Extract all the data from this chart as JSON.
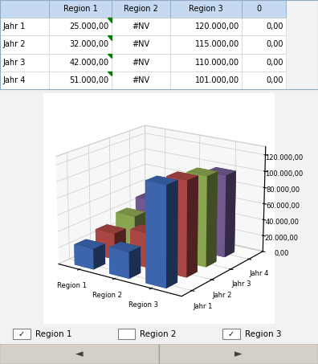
{
  "table_headers": [
    "",
    "Region 1",
    "Region 2",
    "Region 3",
    "0"
  ],
  "table_rows": [
    [
      "Jahr 1",
      "25.000,00",
      "#NV",
      "120.000,00",
      "0,00"
    ],
    [
      "Jahr 2",
      "32.000,00",
      "#NV",
      "115.000,00",
      "0,00"
    ],
    [
      "Jahr 3",
      "42.000,00",
      "#NV",
      "110.000,00",
      "0,00"
    ],
    [
      "Jahr 4",
      "51.000,00",
      "#NV",
      "101.000,00",
      "0,00"
    ]
  ],
  "regions": [
    "Region 1",
    "Region 2",
    "Region 3"
  ],
  "years": [
    "Jahr 1",
    "Jahr 2",
    "Jahr 3",
    "Jahr 4"
  ],
  "data": {
    "Region 1": [
      25000,
      32000,
      42000,
      51000
    ],
    "Region 2": [
      32000,
      42000,
      65000,
      80000
    ],
    "Region 3": [
      120000,
      115000,
      110000,
      101000
    ]
  },
  "colors": [
    "#4472c4",
    "#c0504d",
    "#9bbb59",
    "#8064a2"
  ],
  "yticks": [
    0,
    20000,
    40000,
    60000,
    80000,
    100000,
    120000
  ],
  "ytick_labels": [
    "0,00",
    "20.000,00",
    "40.000,00",
    "60.000,00",
    "80.000,00",
    "100.000,00",
    "120.000,00"
  ],
  "legend_labels": [
    "Jahr 1",
    "Jahr 2",
    "Jahr 3",
    "Jahr 4"
  ],
  "checkbox_region1": true,
  "checkbox_region2": false,
  "checkbox_region3": true,
  "bg_color": "#ffffff",
  "table_header_bg": "#c5d9f1",
  "table_row_bg": "#ffffff",
  "outer_bg": "#f2f2f2",
  "elev": 18,
  "azim": -55
}
